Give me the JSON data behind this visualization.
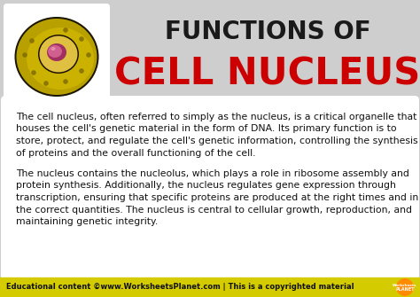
{
  "bg_color": "#cecece",
  "title_line1": "FUNCTIONS OF",
  "title_line1_color": "#1a1a1a",
  "title_line2": "CELL NUCLEUS",
  "title_line2_color": "#cc0000",
  "body_bg": "#ffffff",
  "body_text_color": "#111111",
  "para1_lines": [
    "The cell nucleus, often referred to simply as the nucleus, is a critical organelle that",
    "houses the cell's genetic material in the form of DNA. Its primary function is to",
    "store, protect, and regulate the cell's genetic information, controlling the synthesis",
    "of proteins and the overall functioning of the cell."
  ],
  "para2_lines": [
    "The nucleus contains the nucleolus, which plays a role in ribosome assembly and",
    "protein synthesis. Additionally, the nucleus regulates gene expression through",
    "transcription, ensuring that specific proteins are produced at the right times and in",
    "the correct quantities. The nucleus is central to cellular growth, reproduction, and",
    "maintaining genetic integrity."
  ],
  "footer_bg": "#d4cc00",
  "footer_text": "Educational content ©www.WorksheetsPlanet.com | This is a copyrighted material",
  "footer_text_color": "#111111",
  "footer_fontsize": 6.0,
  "title1_fontsize": 20,
  "title2_fontsize": 30,
  "body_fontsize": 7.8
}
